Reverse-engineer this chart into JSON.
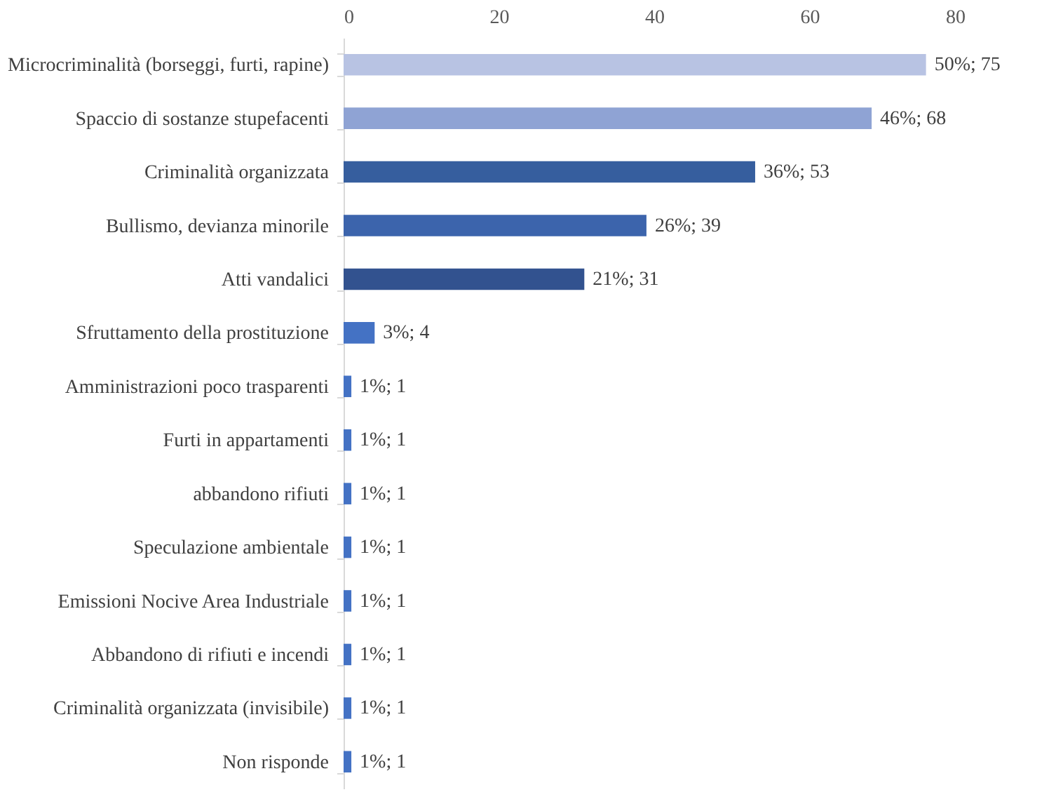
{
  "chart_data": {
    "type": "bar",
    "orientation": "horizontal",
    "categories": [
      "Microcriminalità (borseggi, furti, rapine)",
      "Spaccio di sostanze stupefacenti",
      "Criminalità organizzata",
      "Bullismo,  devianza minorile",
      "Atti vandalici",
      "Sfruttamento della prostituzione",
      "Amministrazioni poco trasparenti",
      "Furti in appartamenti",
      "abbandono rifiuti",
      "Speculazione ambientale",
      "Emissioni Nocive Area Industriale",
      "Abbandono di rifiuti e incendi",
      "Criminalità  organizzata (invisibile)",
      "Non risponde"
    ],
    "values": [
      75,
      68,
      53,
      39,
      31,
      4,
      1,
      1,
      1,
      1,
      1,
      1,
      1,
      1
    ],
    "value_labels": [
      "50%; 75",
      "46%; 68",
      "36%; 53",
      "26%; 39",
      "21%; 31",
      "3%; 4",
      "1%; 1",
      "1%; 1",
      "1%; 1",
      "1%; 1",
      "1%; 1",
      "1%; 1",
      "1%; 1",
      "1%; 1"
    ],
    "colors": [
      "#b8c3e3",
      "#8fa3d4",
      "#365e9e",
      "#3c64ac",
      "#32528f",
      "#4472c4",
      "#4472c4",
      "#4472c4",
      "#4472c4",
      "#4472c4",
      "#4472c4",
      "#4472c4",
      "#4472c4",
      "#4472c4"
    ],
    "xlim": [
      0,
      80
    ],
    "xticks": [
      0,
      20,
      40,
      60,
      80
    ],
    "grid": false
  }
}
